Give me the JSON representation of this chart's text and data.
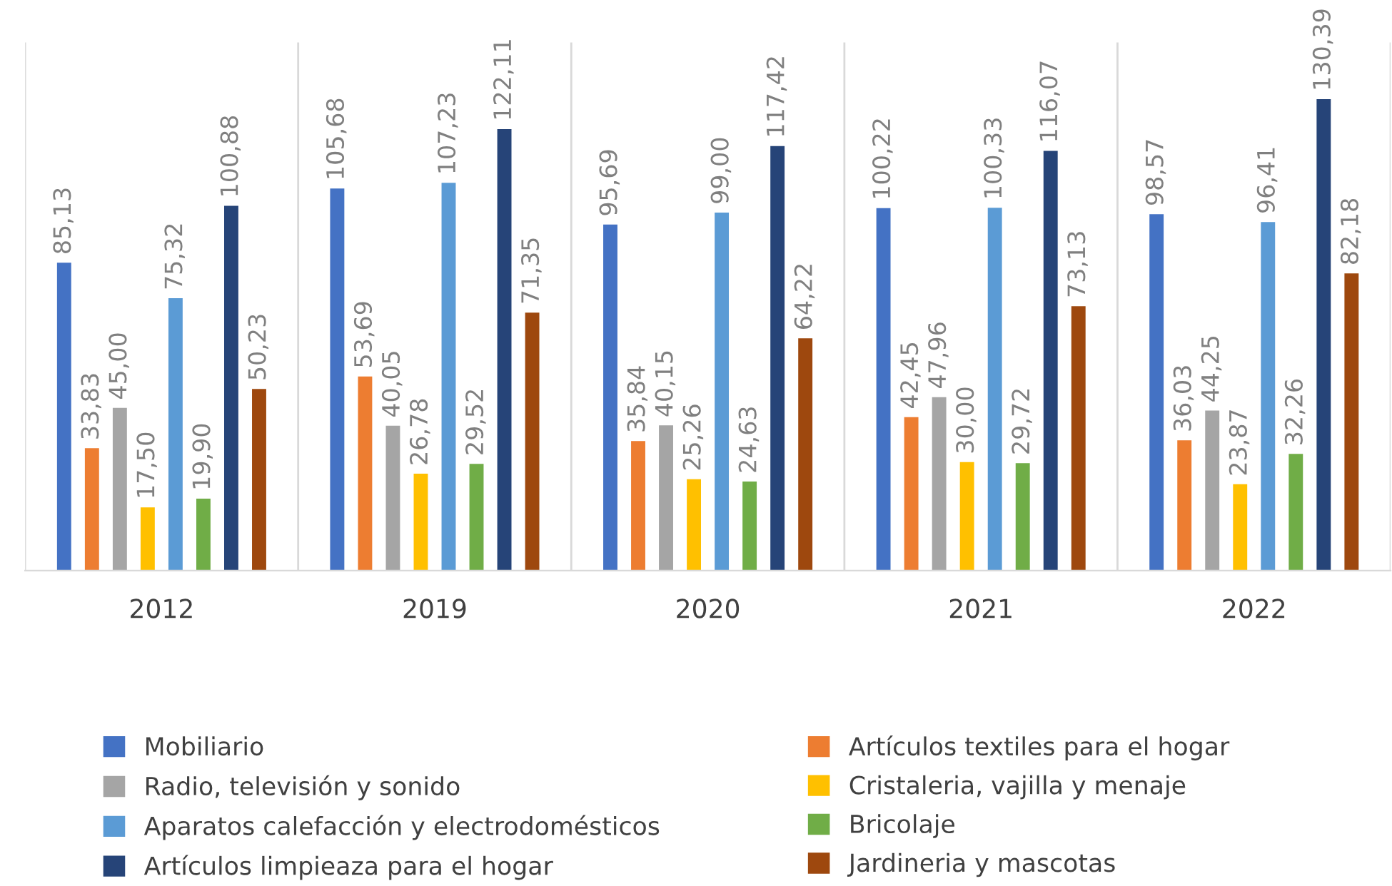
{
  "chart_data": {
    "type": "bar",
    "categories": [
      "2012",
      "2019",
      "2020",
      "2021",
      "2022"
    ],
    "series": [
      {
        "name": "Mobiliario",
        "color": "#4472c4",
        "values": [
          85.13,
          105.68,
          95.69,
          100.22,
          98.57
        ],
        "value_labels": [
          "85,13",
          "105,68",
          "95,69",
          "100,22",
          "98,57"
        ]
      },
      {
        "name": "Artículos textiles para el hogar",
        "color": "#ed7d31",
        "values": [
          33.83,
          53.69,
          35.84,
          42.45,
          36.03
        ],
        "value_labels": [
          "33,83",
          "53,69",
          "35,84",
          "42,45",
          "36,03"
        ]
      },
      {
        "name": "Radio, televisión y sonido",
        "color": "#a5a5a5",
        "values": [
          45.0,
          40.05,
          40.15,
          47.96,
          44.25
        ],
        "value_labels": [
          "45,00",
          "40,05",
          "40,15",
          "47,96",
          "44,25"
        ]
      },
      {
        "name": "Cristaleria, vajilla y menaje",
        "color": "#ffc000",
        "values": [
          17.5,
          26.78,
          25.26,
          30.0,
          23.87
        ],
        "value_labels": [
          "17,50",
          "26,78",
          "25,26",
          "30,00",
          "23,87"
        ]
      },
      {
        "name": "Aparatos calefacción y electrodomésticos",
        "color": "#5b9bd5",
        "values": [
          75.32,
          107.23,
          99.0,
          100.33,
          96.41
        ],
        "value_labels": [
          "75,32",
          "107,23",
          "99,00",
          "100,33",
          "96,41"
        ]
      },
      {
        "name": "Bricolaje",
        "color": "#70ad47",
        "values": [
          19.9,
          29.52,
          24.63,
          29.72,
          32.26
        ],
        "value_labels": [
          "19,90",
          "29,52",
          "24,63",
          "29,72",
          "32,26"
        ]
      },
      {
        "name": "Artículos limpieaza para el hogar",
        "color": "#264478",
        "values": [
          100.88,
          122.11,
          117.42,
          116.07,
          130.39
        ],
        "value_labels": [
          "100,88",
          "122,11",
          "117,42",
          "116,07",
          "130,39"
        ]
      },
      {
        "name": "Jardineria y mascotas",
        "color": "#9e480e",
        "values": [
          50.23,
          71.35,
          64.22,
          73.13,
          82.18
        ],
        "value_labels": [
          "50,23",
          "71,35",
          "64,22",
          "73,13",
          "82,18"
        ]
      }
    ],
    "grid": "x",
    "legend": "bottom"
  }
}
